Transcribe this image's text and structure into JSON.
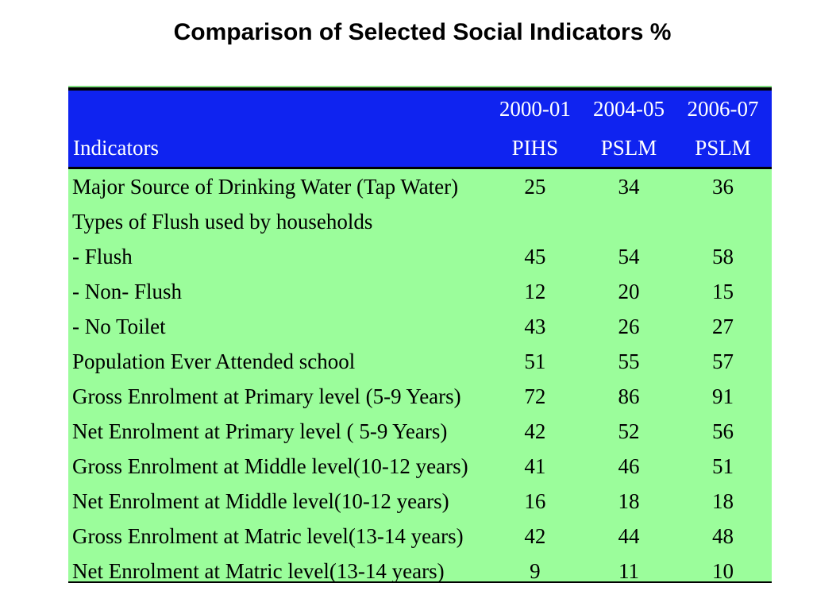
{
  "title": "Comparison of Selected Social Indicators %",
  "table": {
    "header": {
      "indicator_label": "Indicators",
      "columns": [
        {
          "year": "2000-01",
          "source": "PIHS"
        },
        {
          "year": "2004-05",
          "source": "PSLM"
        },
        {
          "year": "2006-07",
          "source": "PSLM"
        }
      ]
    },
    "rows": [
      {
        "label": "Major Source of Drinking Water (Tap Water)",
        "values": [
          "25",
          "34",
          "36"
        ]
      },
      {
        "label": "Types of Flush used by households",
        "values": [
          "",
          "",
          ""
        ]
      },
      {
        "label": "- Flush",
        "values": [
          "45",
          "54",
          "58"
        ]
      },
      {
        "label": "- Non- Flush",
        "values": [
          "12",
          "20",
          "15"
        ]
      },
      {
        "label": "- No Toilet",
        "values": [
          "43",
          "26",
          "27"
        ]
      },
      {
        "label": "Population Ever Attended school",
        "values": [
          "51",
          "55",
          "57"
        ]
      },
      {
        "label": "Gross Enrolment at Primary level (5-9 Years)",
        "values": [
          "72",
          "86",
          "91"
        ]
      },
      {
        "label": "Net Enrolment at Primary level ( 5-9 Years)",
        "values": [
          "42",
          "52",
          "56"
        ]
      },
      {
        "label": "Gross Enrolment at Middle level(10-12 years)",
        "values": [
          "41",
          "46",
          "51"
        ]
      },
      {
        "label": "Net Enrolment at Middle level(10-12 years)",
        "values": [
          "16",
          "18",
          "18"
        ]
      },
      {
        "label": "Gross Enrolment at Matric level(13-14 years)",
        "values": [
          "42",
          "44",
          "48"
        ]
      },
      {
        "label": "Net Enrolment at Matric level(13-14 years)",
        "values": [
          "9",
          "11",
          "10"
        ]
      }
    ]
  },
  "colors": {
    "header_background": "#0f23f0",
    "table_background": "#9bfd9b",
    "header_text": "#ffffff"
  }
}
